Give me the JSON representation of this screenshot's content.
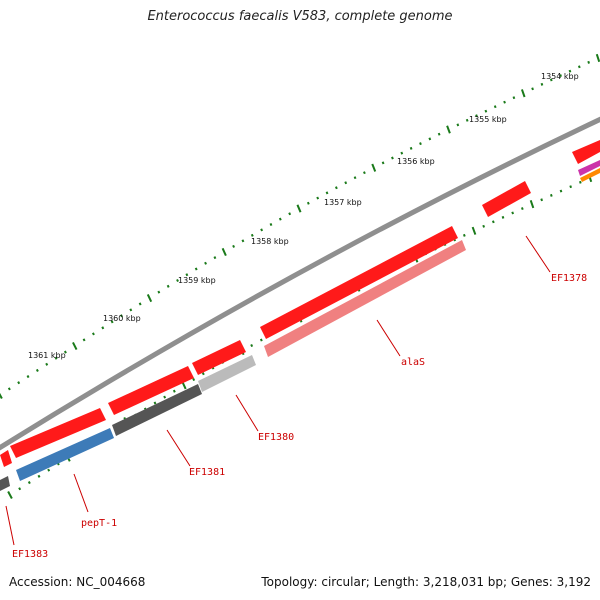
{
  "title": "Enterococcus faecalis V583, complete genome",
  "accession": "Accession: NC_004668",
  "topology": "Topology: circular; Length: 3,218,031 bp; Genes: 3,192",
  "colors": {
    "backbone": "#8a8a8a",
    "cds": "#ff1a1a",
    "ticks": "#1a7a1a",
    "label": "#cc0000"
  },
  "kbp_labels": [
    {
      "text": "1354 kbp",
      "position_kbp": 1354
    },
    {
      "text": "1355 kbp",
      "position_kbp": 1355
    },
    {
      "text": "1356 kbp",
      "position_kbp": 1356
    },
    {
      "text": "1357 kbp",
      "position_kbp": 1357
    },
    {
      "text": "1358 kbp",
      "position_kbp": 1358
    },
    {
      "text": "1359 kbp",
      "position_kbp": 1359
    },
    {
      "text": "1360 kbp",
      "position_kbp": 1360
    },
    {
      "text": "1361 kbp",
      "position_kbp": 1361
    }
  ],
  "genes": [
    {
      "label": "EF1378",
      "color": "#ff1a1a"
    },
    {
      "label": "alaS",
      "color": "#f08080"
    },
    {
      "label": "EF1380",
      "color": "#bbbbbb"
    },
    {
      "label": "EF1381",
      "color": "#555555"
    },
    {
      "label": "pepT-1",
      "color": "#3d7bb8"
    },
    {
      "label": "EF1383",
      "color": "#555555"
    }
  ]
}
